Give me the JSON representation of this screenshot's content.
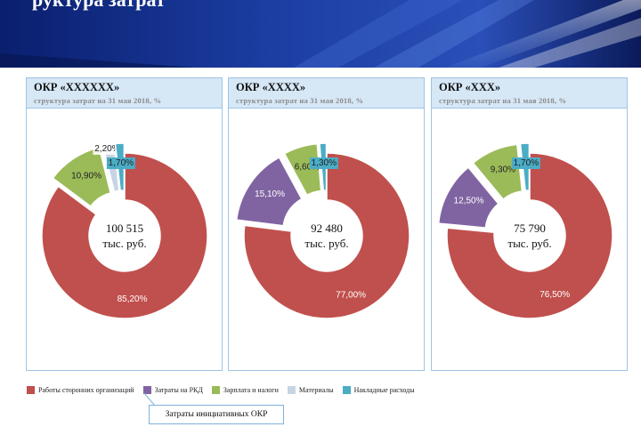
{
  "header": {
    "title_fragment": "руктура затрат"
  },
  "colors": {
    "third_party": "#c0504d",
    "rkd": "#8064a2",
    "salary": "#9bbb59",
    "materials": "#c6d4e4",
    "overhead": "#4bacc6"
  },
  "legend": [
    {
      "key": "third_party",
      "label": "Работы сторонних организаций"
    },
    {
      "key": "rkd",
      "label": "Затраты на РКД"
    },
    {
      "key": "salary",
      "label": "Зарплата и налоги"
    },
    {
      "key": "materials",
      "label": "Материалы"
    },
    {
      "key": "overhead",
      "label": "Накладные расходы"
    }
  ],
  "callout": "Затраты инициативных ОКР",
  "chart_data": [
    {
      "type": "pie",
      "title": "ОКР «ХХХХХХ»",
      "subtitle": "структура затрат на 31 мая 2018, %",
      "center_value": "100 515",
      "center_unit": "тыс. руб.",
      "slices": [
        {
          "key": "third_party",
          "value": 85.2,
          "label": "85,20%"
        },
        {
          "key": "salary",
          "value": 10.9,
          "label": "10,90%"
        },
        {
          "key": "materials",
          "value": 2.2,
          "label": "2,20%"
        },
        {
          "key": "overhead",
          "value": 1.7,
          "label": "1,70%"
        }
      ]
    },
    {
      "type": "pie",
      "title": "ОКР «ХХХХ»",
      "subtitle": "структура затрат на 31 мая 2018, %",
      "center_value": "92 480",
      "center_unit": "тыс. руб.",
      "slices": [
        {
          "key": "third_party",
          "value": 77.0,
          "label": "77,00%"
        },
        {
          "key": "rkd",
          "value": 15.1,
          "label": "15,10%"
        },
        {
          "key": "salary",
          "value": 6.6,
          "label": "6,60%"
        },
        {
          "key": "overhead",
          "value": 1.3,
          "label": "1,30%"
        }
      ]
    },
    {
      "type": "pie",
      "title": "ОКР «ХХХ»",
      "subtitle": "структура затрат на 31 мая 2018, %",
      "center_value": "75 790",
      "center_unit": "тыс. руб.",
      "slices": [
        {
          "key": "third_party",
          "value": 76.5,
          "label": "76,50%"
        },
        {
          "key": "rkd",
          "value": 12.5,
          "label": "12,50%"
        },
        {
          "key": "salary",
          "value": 9.3,
          "label": "9,30%"
        },
        {
          "key": "overhead",
          "value": 1.7,
          "label": "1,70%"
        }
      ]
    }
  ]
}
